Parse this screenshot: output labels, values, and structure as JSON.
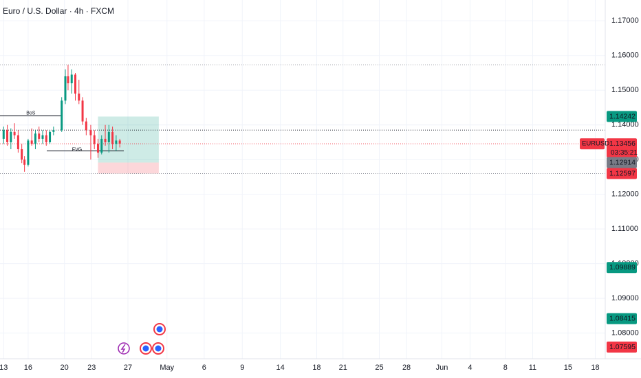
{
  "chart_data": {
    "type": "candlestick",
    "title": "Euro / U.S. Dollar · 4h · FXCM",
    "symbol": "EURUSD",
    "countdown": "03:35:21",
    "up_color": "#089981",
    "down_color": "#f23645",
    "grid": true,
    "xlim": [
      -0.4,
      66.3
    ],
    "ylim": [
      1.072,
      1.176
    ],
    "xticks": [
      {
        "value": 0,
        "label": "13"
      },
      {
        "value": 2.7,
        "label": "16"
      },
      {
        "value": 6.7,
        "label": "20"
      },
      {
        "value": 9.7,
        "label": "23"
      },
      {
        "value": 13.7,
        "label": "27"
      },
      {
        "value": 18,
        "label": "May"
      },
      {
        "value": 22.1,
        "label": "6"
      },
      {
        "value": 26.3,
        "label": "9"
      },
      {
        "value": 30.5,
        "label": "14"
      },
      {
        "value": 34.5,
        "label": "18"
      },
      {
        "value": 37.4,
        "label": "21"
      },
      {
        "value": 41.4,
        "label": "25"
      },
      {
        "value": 44.4,
        "label": "28"
      },
      {
        "value": 48.3,
        "label": "Jun"
      },
      {
        "value": 51.4,
        "label": "4"
      },
      {
        "value": 55.3,
        "label": "8"
      },
      {
        "value": 58.3,
        "label": "11"
      },
      {
        "value": 62.2,
        "label": "15"
      },
      {
        "value": 65.2,
        "label": "18"
      }
    ],
    "yticks": [
      {
        "value": 1.08,
        "label": "1.08000"
      },
      {
        "value": 1.09,
        "label": "1.09000"
      },
      {
        "value": 1.1,
        "label": "1.10000"
      },
      {
        "value": 1.11,
        "label": "1.11000"
      },
      {
        "value": 1.12,
        "label": "1.12000"
      },
      {
        "value": 1.13,
        "label": "1.13000"
      },
      {
        "value": 1.14,
        "label": "1.14000"
      },
      {
        "value": 1.15,
        "label": "1.15000"
      },
      {
        "value": 1.16,
        "label": "1.16000"
      },
      {
        "value": 1.17,
        "label": "1.17000"
      }
    ],
    "candles": [
      {
        "x": 0.0,
        "open": 1.136,
        "high": 1.1395,
        "low": 1.1345,
        "close": 1.1385
      },
      {
        "x": 0.4,
        "open": 1.1385,
        "high": 1.14,
        "low": 1.134,
        "close": 1.135
      },
      {
        "x": 0.8,
        "open": 1.135,
        "high": 1.139,
        "low": 1.133,
        "close": 1.138
      },
      {
        "x": 1.2,
        "open": 1.138,
        "high": 1.1405,
        "low": 1.136,
        "close": 1.137
      },
      {
        "x": 1.6,
        "open": 1.137,
        "high": 1.1385,
        "low": 1.132,
        "close": 1.133
      },
      {
        "x": 2.0,
        "open": 1.133,
        "high": 1.1345,
        "low": 1.129,
        "close": 1.13
      },
      {
        "x": 2.3,
        "open": 1.13,
        "high": 1.131,
        "low": 1.1265,
        "close": 1.1285
      },
      {
        "x": 2.7,
        "open": 1.1285,
        "high": 1.136,
        "low": 1.128,
        "close": 1.1355
      },
      {
        "x": 3.1,
        "open": 1.1355,
        "high": 1.139,
        "low": 1.134,
        "close": 1.1345
      },
      {
        "x": 3.5,
        "open": 1.1345,
        "high": 1.1385,
        "low": 1.133,
        "close": 1.1375
      },
      {
        "x": 3.9,
        "open": 1.1375,
        "high": 1.1395,
        "low": 1.135,
        "close": 1.136
      },
      {
        "x": 4.3,
        "open": 1.136,
        "high": 1.1385,
        "low": 1.1345,
        "close": 1.137
      },
      {
        "x": 4.7,
        "open": 1.137,
        "high": 1.1385,
        "low": 1.134,
        "close": 1.135
      },
      {
        "x": 5.1,
        "open": 1.135,
        "high": 1.1385,
        "low": 1.1345,
        "close": 1.138
      },
      {
        "x": 5.5,
        "open": 1.138,
        "high": 1.1395,
        "low": 1.137,
        "close": 1.1385
      },
      {
        "x": 6.4,
        "open": 1.1385,
        "high": 1.148,
        "low": 1.138,
        "close": 1.147
      },
      {
        "x": 6.8,
        "open": 1.147,
        "high": 1.156,
        "low": 1.146,
        "close": 1.154
      },
      {
        "x": 7.1,
        "open": 1.154,
        "high": 1.1573,
        "low": 1.15,
        "close": 1.152
      },
      {
        "x": 7.5,
        "open": 1.152,
        "high": 1.156,
        "low": 1.149,
        "close": 1.1545
      },
      {
        "x": 7.9,
        "open": 1.1545,
        "high": 1.155,
        "low": 1.147,
        "close": 1.149
      },
      {
        "x": 8.3,
        "open": 1.149,
        "high": 1.153,
        "low": 1.146,
        "close": 1.147
      },
      {
        "x": 8.7,
        "open": 1.147,
        "high": 1.148,
        "low": 1.14,
        "close": 1.141
      },
      {
        "x": 9.1,
        "open": 1.141,
        "high": 1.142,
        "low": 1.137,
        "close": 1.1385
      },
      {
        "x": 9.6,
        "open": 1.1385,
        "high": 1.14,
        "low": 1.13,
        "close": 1.137
      },
      {
        "x": 10.0,
        "open": 1.137,
        "high": 1.1385,
        "low": 1.133,
        "close": 1.1345
      },
      {
        "x": 10.4,
        "open": 1.1345,
        "high": 1.136,
        "low": 1.1305,
        "close": 1.132
      },
      {
        "x": 10.8,
        "open": 1.132,
        "high": 1.137,
        "low": 1.1315,
        "close": 1.136
      },
      {
        "x": 11.2,
        "open": 1.136,
        "high": 1.14,
        "low": 1.134,
        "close": 1.135
      },
      {
        "x": 11.6,
        "open": 1.135,
        "high": 1.14,
        "low": 1.132,
        "close": 1.138
      },
      {
        "x": 12.0,
        "open": 1.138,
        "high": 1.1395,
        "low": 1.133,
        "close": 1.1345
      },
      {
        "x": 12.4,
        "open": 1.1345,
        "high": 1.137,
        "low": 1.1325,
        "close": 1.1355
      },
      {
        "x": 12.8,
        "open": 1.1355,
        "high": 1.136,
        "low": 1.1335,
        "close": 1.1346
      }
    ],
    "levels": [
      {
        "value": 1.1573,
        "color": "#9598a1"
      },
      {
        "value": 1.1385,
        "color": "#131722"
      },
      {
        "value": 1.12597,
        "color": "#9598a1"
      }
    ],
    "bos": {
      "label": "BoS",
      "value": 1.1426,
      "start": -0.4,
      "end": 6.4
    },
    "fvg": {
      "label": "FVG",
      "value": 1.1325
    },
    "position": {
      "target": 1.14242,
      "entry": 1.12914,
      "stop": 1.12597,
      "start": 10.4,
      "end": 17.1
    },
    "price_labels": [
      {
        "value": 1.14242,
        "color": "#089981"
      },
      {
        "value": 1.13456,
        "color": "#f23645"
      },
      {
        "value": 1.12914,
        "color": "#787b86"
      },
      {
        "value": 1.12597,
        "color": "#f23645"
      },
      {
        "value": 1.09889,
        "color": "#089981"
      },
      {
        "value": 1.08415,
        "color": "#089981"
      },
      {
        "value": 1.07595,
        "color": "#f23645"
      }
    ]
  }
}
